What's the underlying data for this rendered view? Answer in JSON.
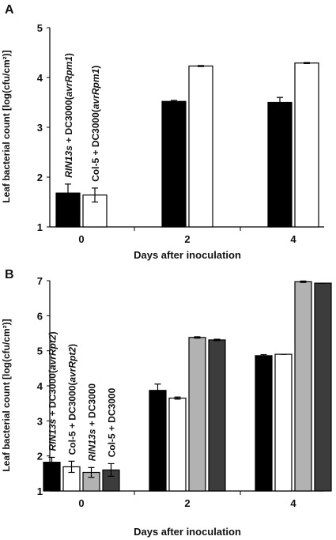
{
  "chart_data": [
    {
      "panel": "A",
      "type": "bar",
      "categories": [
        "0",
        "2",
        "4"
      ],
      "series": [
        {
          "name": "RIN13s + DC3000(avrRpm1)",
          "values": [
            1.68,
            3.52,
            3.5
          ],
          "errors": [
            0.18,
            0.02,
            0.1
          ],
          "color": "#000000"
        },
        {
          "name": "Col-5 + DC3000(avrRpm1)",
          "values": [
            1.64,
            4.23,
            4.29
          ],
          "errors": [
            0.14,
            0.01,
            0.01
          ],
          "color": "#ffffff"
        }
      ],
      "xlabel": "Days after inoculation",
      "ylabel": "Leaf bacterial count [log(cfu/cm²)]",
      "ylim": [
        1,
        5
      ],
      "yticks": [
        "1",
        "2",
        "3",
        "4",
        "5"
      ]
    },
    {
      "panel": "B",
      "type": "bar",
      "categories": [
        "0",
        "2",
        "4"
      ],
      "series": [
        {
          "name": "RIN13s + DC3000(avrRpt2)",
          "values": [
            1.82,
            3.87,
            4.86
          ],
          "errors": [
            0.14,
            0.18,
            0.03
          ],
          "color": "#000000"
        },
        {
          "name": "Col-5 + DC3000(avrRpt2)",
          "values": [
            1.69,
            3.65,
            4.9
          ],
          "errors": [
            0.16,
            0.03,
            0.0
          ],
          "color": "#ffffff"
        },
        {
          "name": "RIN13s + DC3000",
          "values": [
            1.53,
            5.38,
            6.97
          ],
          "errors": [
            0.14,
            0.02,
            0.02
          ],
          "color": "#b2b2b2"
        },
        {
          "name": "Col-5 + DC3000",
          "values": [
            1.6,
            5.31,
            6.93
          ],
          "errors": [
            0.18,
            0.02,
            0.0
          ],
          "color": "#3c3c3c"
        }
      ],
      "xlabel": "Days after inoculation",
      "ylabel": "Leaf bacterial count [log(cfu/cm²)]",
      "ylim": [
        1,
        7
      ],
      "yticks": [
        "1",
        "2",
        "3",
        "4",
        "5",
        "6",
        "7"
      ]
    }
  ],
  "panels": {
    "a": {
      "label": "A"
    },
    "b": {
      "label": "B"
    }
  }
}
